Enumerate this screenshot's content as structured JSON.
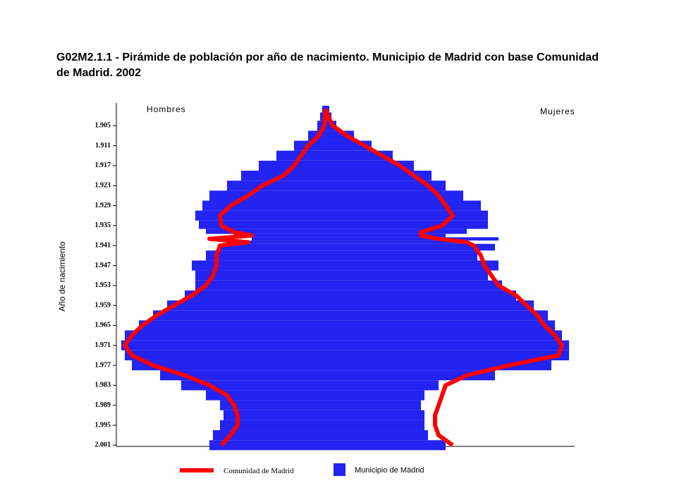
{
  "chart_data": {
    "type": "population-pyramid",
    "title": "G02M2.1.1 - Pirámide de población por año de nacimiento. Municipio de Madrid con base Comunidad",
    "title_line2": "de Madrid. 2002",
    "y_label": "Año de nacimiento",
    "left_label": "Hombres",
    "right_label": "Mujeres",
    "years": [
      1900,
      1902,
      1905,
      1908,
      1911,
      1914,
      1917,
      1920,
      1923,
      1926,
      1929,
      1932,
      1935,
      1937,
      1938,
      1939,
      1940,
      1941,
      1944,
      1947,
      1950,
      1953,
      1956,
      1959,
      1962,
      1965,
      1968,
      1971,
      1974,
      1977,
      1980,
      1983,
      1986,
      1989,
      1992,
      1995,
      1998,
      2001
    ],
    "series": [
      {
        "name": "Municipio de Madrid",
        "color": "#2323f2",
        "style": "bar",
        "men": [
          -5,
          -8,
          -12,
          -25,
          -45,
          -70,
          -95,
          -120,
          -140,
          -165,
          -175,
          -185,
          -180,
          -170,
          -130,
          -105,
          -130,
          -150,
          -170,
          -190,
          -185,
          -185,
          -200,
          -225,
          -245,
          -265,
          -285,
          -290,
          -285,
          -275,
          -235,
          -205,
          -170,
          -150,
          -145,
          -150,
          -160,
          -165
        ],
        "women": [
          5,
          8,
          15,
          40,
          65,
          95,
          125,
          150,
          170,
          195,
          220,
          230,
          230,
          200,
          170,
          245,
          200,
          240,
          215,
          245,
          230,
          250,
          270,
          295,
          315,
          325,
          335,
          345,
          345,
          320,
          240,
          160,
          140,
          135,
          140,
          140,
          145,
          170
        ]
      },
      {
        "name": "Comunidad  de Madrid",
        "color": "#ff0000",
        "style": "line",
        "men": [
          0,
          -1,
          -2,
          -10,
          -25,
          -35,
          -45,
          -60,
          -90,
          -110,
          -135,
          -150,
          -148,
          -130,
          -105,
          -165,
          -110,
          -150,
          -155,
          -155,
          -160,
          -170,
          -190,
          -215,
          -240,
          -260,
          -275,
          -285,
          -275,
          -245,
          -200,
          -165,
          -140,
          -130,
          -125,
          -125,
          -135,
          -148
        ],
        "women": [
          0,
          3,
          10,
          30,
          55,
          80,
          105,
          125,
          145,
          160,
          170,
          180,
          165,
          135,
          135,
          160,
          200,
          210,
          220,
          225,
          235,
          245,
          270,
          285,
          300,
          310,
          325,
          335,
          330,
          260,
          200,
          170,
          165,
          160,
          155,
          155,
          160,
          180
        ]
      }
    ],
    "xlim": [
      -297,
      353
    ],
    "ylim": [
      1899,
      2002
    ],
    "yticks": [
      {
        "value": 1905,
        "label": "1.905"
      },
      {
        "value": 1911,
        "label": "1.911"
      },
      {
        "value": 1917,
        "label": "1.917"
      },
      {
        "value": 1923,
        "label": "1.923"
      },
      {
        "value": 1929,
        "label": "1.929"
      },
      {
        "value": 1935,
        "label": "1.935"
      },
      {
        "value": 1941,
        "label": "1.941"
      },
      {
        "value": 1947,
        "label": "1.947"
      },
      {
        "value": 1953,
        "label": "1.953"
      },
      {
        "value": 1959,
        "label": "1.959"
      },
      {
        "value": 1965,
        "label": "1.965"
      },
      {
        "value": 1971,
        "label": "1.971"
      },
      {
        "value": 1977,
        "label": "1.977"
      },
      {
        "value": 1983,
        "label": "1.983"
      },
      {
        "value": 1989,
        "label": "1.989"
      },
      {
        "value": 1995,
        "label": "1.995"
      },
      {
        "value": 2001,
        "label": "2.001"
      }
    ]
  }
}
